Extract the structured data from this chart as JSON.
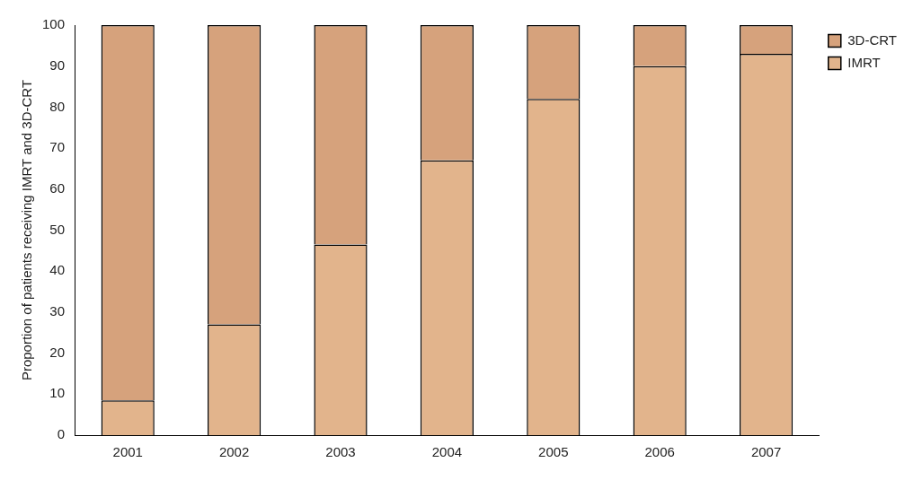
{
  "chart_data": {
    "type": "bar",
    "stacked": true,
    "ylabel": "Proportion of patients receiving IMRT and 3D-CRT",
    "categories": [
      "2001",
      "2002",
      "2003",
      "2004",
      "2005",
      "2006",
      "2007"
    ],
    "series": [
      {
        "name": "IMRT",
        "color": "#e2b48c",
        "values": [
          8.5,
          27,
          46.5,
          67,
          82,
          90,
          93
        ]
      },
      {
        "name": "3D-CRT",
        "color": "#d6a27c",
        "values": [
          91.5,
          73,
          53.5,
          33,
          18,
          10,
          7
        ]
      }
    ],
    "ylim": [
      0,
      100
    ],
    "yticks": [
      0,
      10,
      20,
      30,
      40,
      50,
      60,
      70,
      80,
      90,
      100
    ],
    "grid": false,
    "legend": "top right"
  }
}
